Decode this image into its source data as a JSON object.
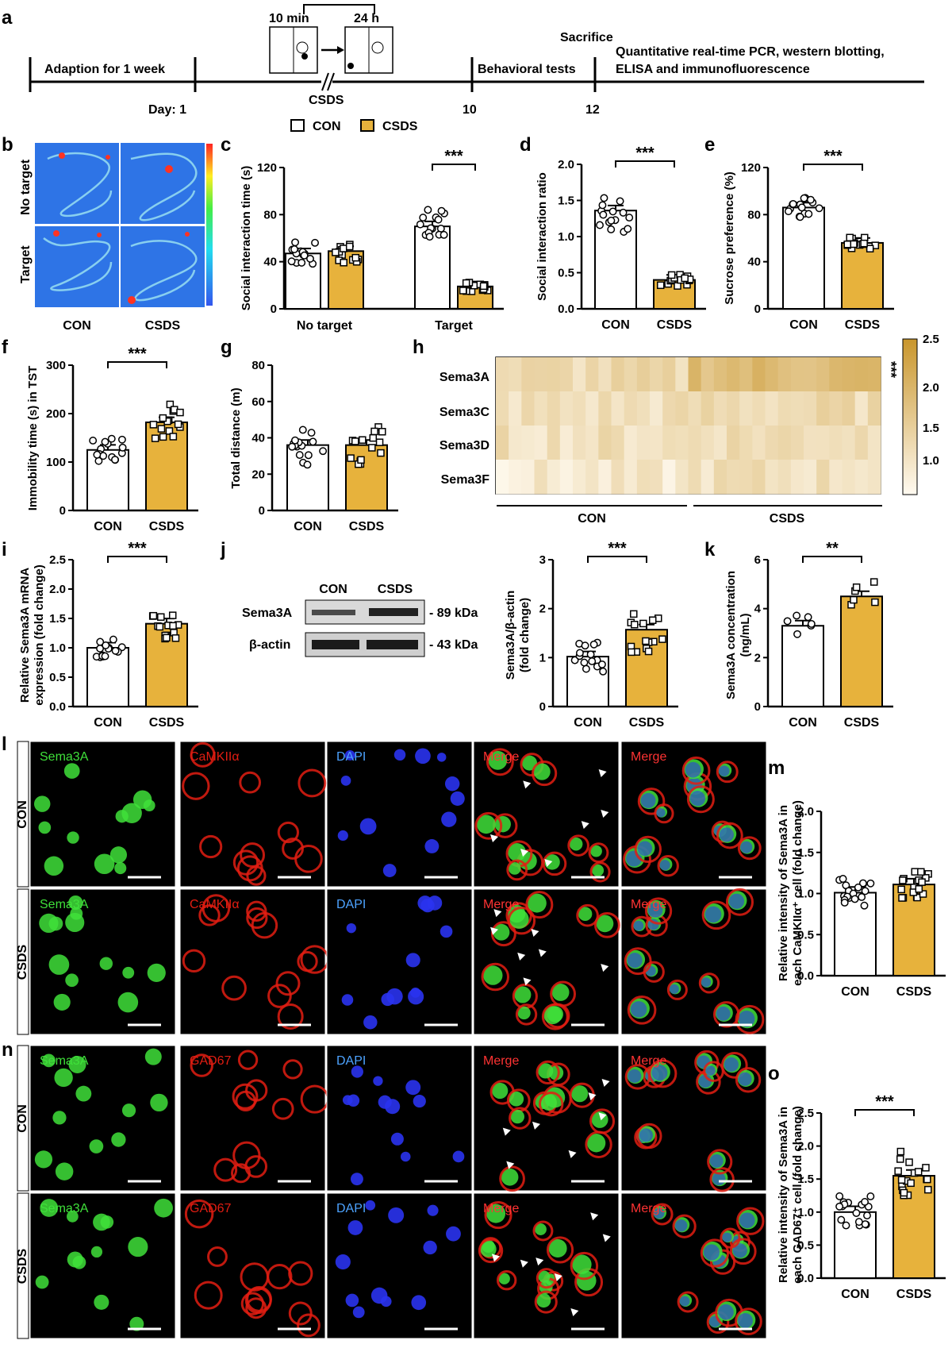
{
  "colors": {
    "con": "#ffffff",
    "csds": "#e7b23c",
    "line": "#000000",
    "green": "#3fe03a",
    "red": "#e21d12",
    "blue": "#2a33f0"
  },
  "panel_letters": [
    "a",
    "b",
    "c",
    "d",
    "e",
    "f",
    "g",
    "h",
    "i",
    "j",
    "k",
    "l",
    "m",
    "n",
    "o"
  ],
  "timeline": {
    "adaption": "Adaption for 1 week",
    "day_label": "Day: 1",
    "t10": "10 min",
    "t24": "24 h",
    "csds": "CSDS",
    "day10": "10",
    "day12": "12",
    "sacrifice": "Sacrifice",
    "behavior": "Behavioral tests",
    "assays_1": "Quantitative real-time PCR, western blotting,",
    "assays_2": "ELISA and immunofluorescence"
  },
  "legend": {
    "con": "CON",
    "csds": "CSDS"
  },
  "panel_b": {
    "row1": "No target",
    "row2": "Target",
    "col1": "CON",
    "col2": "CSDS"
  },
  "panel_h": {
    "genes": [
      "Sema3A",
      "Sema3C",
      "Sema3D",
      "Sema3F"
    ],
    "sig": "***",
    "scale_ticks": [
      "2.5",
      "2.0",
      "1.5",
      "1.0"
    ],
    "con": "CON",
    "csds": "CSDS"
  },
  "panel_j": {
    "con": "CON",
    "csds": "CSDS",
    "rows": [
      "Sema3A",
      "β-actin"
    ],
    "sizes": [
      "- 89 kDa",
      "- 43 kDa"
    ]
  },
  "panel_l": {
    "channels": [
      "Sema3A",
      "CaMKIIα",
      "DAPI",
      "Merge",
      "Merge"
    ],
    "rows": [
      "CON",
      "CSDS"
    ]
  },
  "panel_n": {
    "channels": [
      "Sema3A",
      "GAD67",
      "DAPI",
      "Merge",
      "Merge"
    ],
    "rows": [
      "CON",
      "CSDS"
    ]
  },
  "chart_data": [
    {
      "panel": "c",
      "type": "bar",
      "ylabel": "Social interaction time (s)",
      "ylim": [
        0,
        120
      ],
      "yticks": [
        "0",
        "40",
        "80",
        "120"
      ],
      "groups": [
        "No target",
        "Target"
      ],
      "series": [
        {
          "name": "CON",
          "values": [
            47,
            70
          ]
        },
        {
          "name": "CSDS",
          "values": [
            49,
            19
          ]
        }
      ],
      "significance": [
        "",
        "***"
      ]
    },
    {
      "panel": "d",
      "type": "bar",
      "ylabel": "Social interaction ratio",
      "ylim": [
        0,
        2.0
      ],
      "yticks": [
        "0.0",
        "0.5",
        "1.0",
        "1.5",
        "2.0"
      ],
      "categories": [
        "CON",
        "CSDS"
      ],
      "values": [
        1.36,
        0.4
      ],
      "significance": "***"
    },
    {
      "panel": "e",
      "type": "bar",
      "ylabel": "Sucrose preference (%)",
      "ylim": [
        0,
        120
      ],
      "yticks": [
        "0",
        "40",
        "80",
        "120"
      ],
      "categories": [
        "CON",
        "CSDS"
      ],
      "values": [
        86,
        56
      ],
      "significance": "***"
    },
    {
      "panel": "f",
      "type": "bar",
      "ylabel": "Immobility time (s) in TST",
      "ylim": [
        0,
        300
      ],
      "yticks": [
        "0",
        "100",
        "200",
        "300"
      ],
      "categories": [
        "CON",
        "CSDS"
      ],
      "values": [
        125,
        182
      ],
      "significance": "***"
    },
    {
      "panel": "g",
      "type": "bar",
      "ylabel": "Total distance (m)",
      "ylim": [
        0,
        80
      ],
      "yticks": [
        "0",
        "20",
        "40",
        "60",
        "80"
      ],
      "categories": [
        "CON",
        "CSDS"
      ],
      "values": [
        36,
        36
      ],
      "significance": ""
    },
    {
      "panel": "i",
      "type": "bar",
      "ylabel": "Relative Sema3A mRNA expression (fold change)",
      "ylim": [
        0,
        2.5
      ],
      "yticks": [
        "0.0",
        "0.5",
        "1.0",
        "1.5",
        "2.0",
        "2.5"
      ],
      "categories": [
        "CON",
        "CSDS"
      ],
      "values": [
        1.0,
        1.41
      ],
      "significance": "***"
    },
    {
      "panel": "j",
      "type": "bar",
      "ylabel": "Sema3A/β-actin (fold change)",
      "ylim": [
        0,
        3
      ],
      "yticks": [
        "0",
        "1",
        "2",
        "3"
      ],
      "categories": [
        "CON",
        "CSDS"
      ],
      "values": [
        1.02,
        1.57
      ],
      "significance": "***"
    },
    {
      "panel": "k",
      "type": "bar",
      "ylabel": "Sema3A concentration (ng/mL)",
      "ylim": [
        0,
        6
      ],
      "yticks": [
        "0",
        "2",
        "4",
        "6"
      ],
      "categories": [
        "CON",
        "CSDS"
      ],
      "values": [
        3.3,
        4.5
      ],
      "significance": "**"
    },
    {
      "panel": "m",
      "type": "bar",
      "ylabel": "Relative intensity of Sema3A in each CaMKIIα⁺ cell (fold change)",
      "ylim": [
        0,
        2.0
      ],
      "yticks": [
        "0.0",
        "0.5",
        "1.0",
        "1.5",
        "2.0"
      ],
      "categories": [
        "CON",
        "CSDS"
      ],
      "values": [
        1.01,
        1.11
      ],
      "significance": ""
    },
    {
      "panel": "o",
      "type": "bar",
      "ylabel": "Relative intensity of Sema3A in each GAD67⁺ cell (fold change)",
      "ylim": [
        0,
        2.5
      ],
      "yticks": [
        "0.0",
        "0.5",
        "1.0",
        "1.5",
        "2.0",
        "2.5"
      ],
      "categories": [
        "CON",
        "CSDS"
      ],
      "values": [
        1.0,
        1.55
      ],
      "significance": "***"
    },
    {
      "panel": "h",
      "type": "heatmap",
      "rows": [
        "Sema3A",
        "Sema3C",
        "Sema3D",
        "Sema3F"
      ],
      "columns_con": 15,
      "columns_csds": 15,
      "scale": [
        0.7,
        2.6
      ],
      "row_means": {
        "CON": [
          1.3,
          1.2,
          1.2,
          1.0
        ],
        "CSDS": [
          1.9,
          1.3,
          1.3,
          1.2
        ]
      }
    }
  ]
}
